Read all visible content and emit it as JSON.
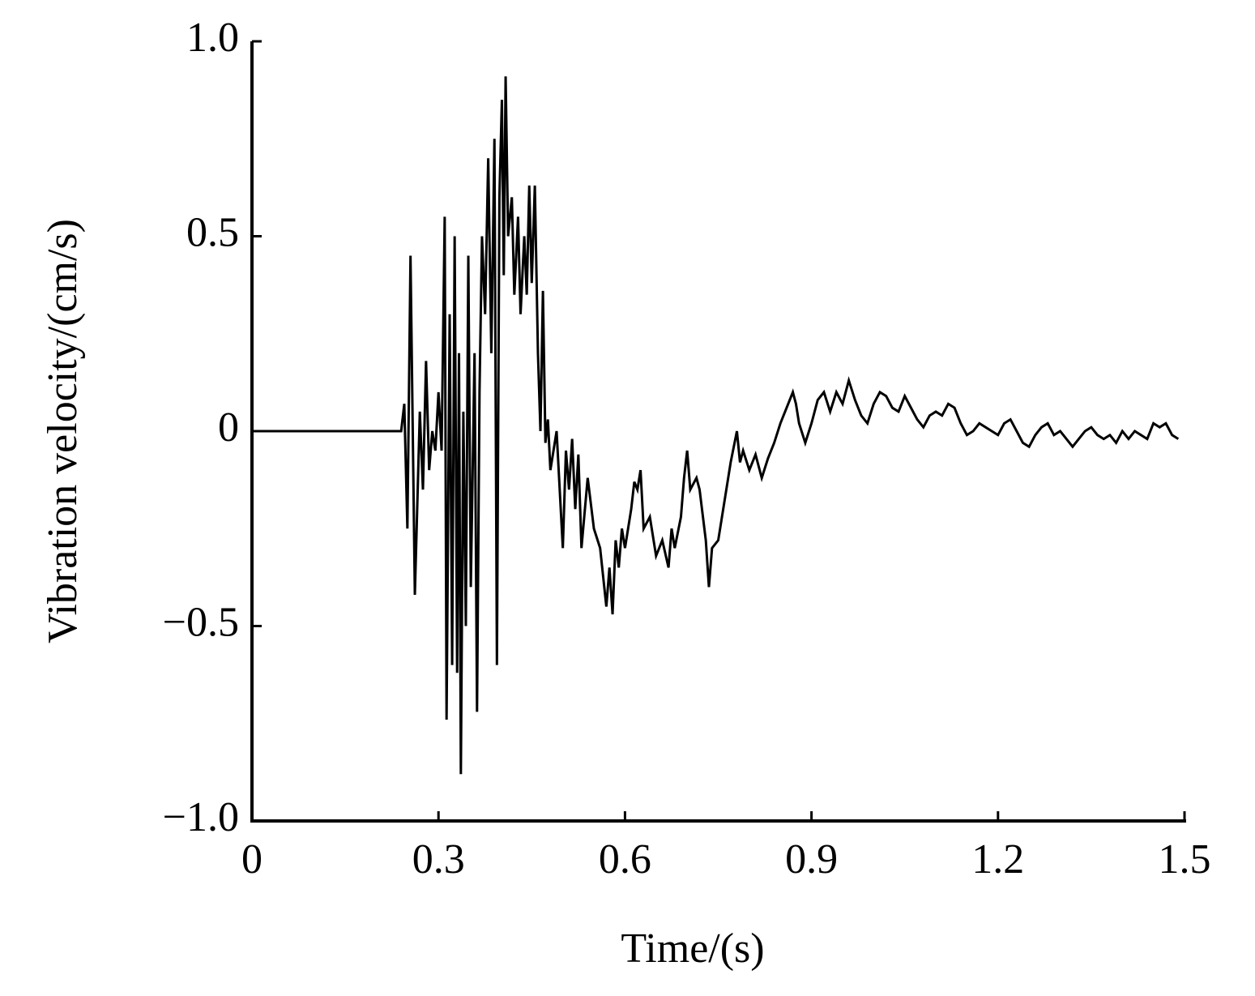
{
  "chart_data": {
    "type": "line",
    "xlabel": "Time/(s)",
    "ylabel": "Vibration velocity/(cm/s)",
    "xlim": [
      0,
      1.5
    ],
    "ylim": [
      -1,
      1
    ],
    "xticks": [
      0,
      0.3,
      0.6,
      0.9,
      1.2,
      1.5
    ],
    "yticks": [
      {
        "value": -1,
        "label": "−1.0"
      },
      {
        "value": -0.5,
        "label": "−0.5"
      },
      0,
      0.5,
      {
        "value": 1,
        "label": "1.0"
      }
    ],
    "grid": false,
    "series": [
      {
        "color": "#000000",
        "x": [
          0,
          0.1,
          0.24,
          0.245,
          0.25,
          0.255,
          0.262,
          0.27,
          0.275,
          0.28,
          0.285,
          0.29,
          0.295,
          0.3,
          0.305,
          0.31,
          0.313,
          0.318,
          0.322,
          0.326,
          0.33,
          0.333,
          0.336,
          0.34,
          0.344,
          0.348,
          0.352,
          0.358,
          0.362,
          0.366,
          0.37,
          0.375,
          0.38,
          0.385,
          0.39,
          0.394,
          0.398,
          0.402,
          0.405,
          0.408,
          0.412,
          0.418,
          0.422,
          0.428,
          0.432,
          0.438,
          0.442,
          0.446,
          0.45,
          0.455,
          0.46,
          0.464,
          0.468,
          0.472,
          0.476,
          0.48,
          0.49,
          0.5,
          0.505,
          0.51,
          0.515,
          0.52,
          0.525,
          0.53,
          0.54,
          0.55,
          0.56,
          0.57,
          0.575,
          0.58,
          0.585,
          0.59,
          0.595,
          0.6,
          0.61,
          0.615,
          0.62,
          0.625,
          0.63,
          0.64,
          0.65,
          0.66,
          0.67,
          0.675,
          0.68,
          0.69,
          0.695,
          0.7,
          0.705,
          0.715,
          0.72,
          0.73,
          0.735,
          0.74,
          0.75,
          0.76,
          0.77,
          0.775,
          0.78,
          0.785,
          0.79,
          0.8,
          0.81,
          0.82,
          0.83,
          0.84,
          0.85,
          0.86,
          0.87,
          0.875,
          0.88,
          0.89,
          0.9,
          0.91,
          0.92,
          0.93,
          0.94,
          0.95,
          0.96,
          0.97,
          0.98,
          0.99,
          1.0,
          1.01,
          1.02,
          1.03,
          1.04,
          1.05,
          1.06,
          1.07,
          1.08,
          1.09,
          1.1,
          1.11,
          1.12,
          1.13,
          1.14,
          1.15,
          1.16,
          1.17,
          1.18,
          1.19,
          1.2,
          1.21,
          1.22,
          1.23,
          1.24,
          1.25,
          1.26,
          1.27,
          1.28,
          1.29,
          1.3,
          1.31,
          1.32,
          1.33,
          1.34,
          1.35,
          1.36,
          1.37,
          1.38,
          1.39,
          1.4,
          1.41,
          1.42,
          1.43,
          1.44,
          1.45,
          1.46,
          1.47,
          1.48,
          1.49
        ],
        "values": [
          0,
          0,
          0,
          0.07,
          -0.25,
          0.45,
          -0.42,
          0.05,
          -0.15,
          0.18,
          -0.1,
          0,
          -0.05,
          0.1,
          -0.05,
          0.55,
          -0.74,
          0.3,
          -0.6,
          0.5,
          -0.62,
          0.2,
          -0.88,
          0.05,
          -0.5,
          0.45,
          -0.4,
          0.2,
          -0.72,
          0.1,
          0.5,
          0.3,
          0.7,
          0.2,
          0.75,
          -0.6,
          0.6,
          0.85,
          0.4,
          0.91,
          0.5,
          0.6,
          0.35,
          0.55,
          0.3,
          0.5,
          0.35,
          0.63,
          0.38,
          0.63,
          0.2,
          0,
          0.36,
          -0.03,
          0.03,
          -0.1,
          0,
          -0.3,
          -0.05,
          -0.15,
          -0.02,
          -0.2,
          -0.06,
          -0.3,
          -0.12,
          -0.25,
          -0.3,
          -0.45,
          -0.35,
          -0.47,
          -0.28,
          -0.35,
          -0.25,
          -0.3,
          -0.2,
          -0.13,
          -0.15,
          -0.1,
          -0.25,
          -0.22,
          -0.32,
          -0.28,
          -0.35,
          -0.25,
          -0.3,
          -0.22,
          -0.12,
          -0.05,
          -0.15,
          -0.12,
          -0.15,
          -0.28,
          -0.4,
          -0.3,
          -0.28,
          -0.18,
          -0.08,
          -0.04,
          0,
          -0.08,
          -0.05,
          -0.1,
          -0.06,
          -0.12,
          -0.07,
          -0.03,
          0.02,
          0.06,
          0.1,
          0.07,
          0.02,
          -0.03,
          0.02,
          0.08,
          0.1,
          0.05,
          0.1,
          0.07,
          0.13,
          0.08,
          0.04,
          0.02,
          0.07,
          0.1,
          0.09,
          0.06,
          0.05,
          0.09,
          0.06,
          0.03,
          0.01,
          0.04,
          0.05,
          0.04,
          0.07,
          0.06,
          0.02,
          -0.01,
          0,
          0.02,
          0.01,
          0,
          -0.01,
          0.02,
          0.03,
          0,
          -0.03,
          -0.04,
          -0.01,
          0.01,
          0.02,
          -0.01,
          0,
          -0.02,
          -0.04,
          -0.02,
          0,
          0.01,
          -0.01,
          -0.02,
          -0.01,
          -0.03,
          0,
          -0.02,
          0,
          -0.01,
          -0.02,
          0.02,
          0.01,
          0.02,
          -0.01,
          -0.02
        ]
      }
    ]
  }
}
